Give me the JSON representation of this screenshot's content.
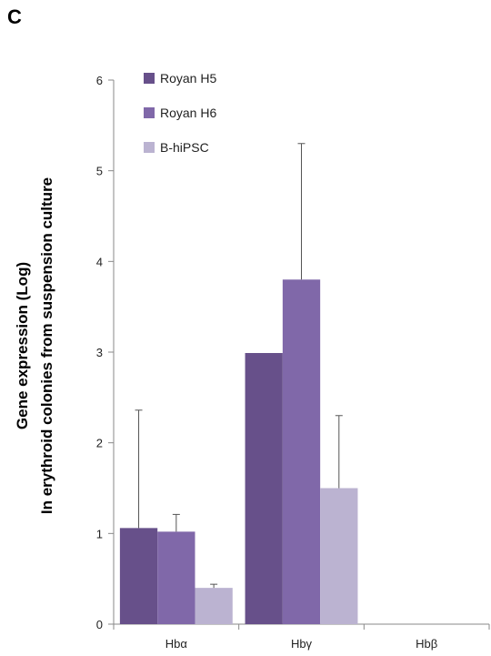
{
  "panel_label": "C",
  "chart_data": {
    "type": "bar",
    "categories": [
      "Hbα",
      "Hbγ",
      "Hbβ"
    ],
    "series": [
      {
        "name": "Royan H5",
        "values": [
          1.06,
          2.99,
          0
        ],
        "errors": [
          1.3,
          0.0,
          0
        ],
        "color": "#67508a"
      },
      {
        "name": "Royan H6",
        "values": [
          1.02,
          3.8,
          0
        ],
        "errors": [
          0.19,
          1.5,
          0
        ],
        "color": "#8068a9"
      },
      {
        "name": "B-hiPSC",
        "values": [
          0.4,
          1.5,
          0
        ],
        "errors": [
          0.04,
          0.8,
          0
        ],
        "color": "#bbb3d1"
      }
    ],
    "ylabel_line1": "Gene expression (Log)",
    "ylabel_line2": "In erythroid colonies from suspension culture",
    "ylim": [
      0,
      6
    ],
    "yticks": [
      0,
      1,
      2,
      3,
      4,
      5,
      6
    ],
    "grid": false,
    "legend_position": "top-left"
  }
}
